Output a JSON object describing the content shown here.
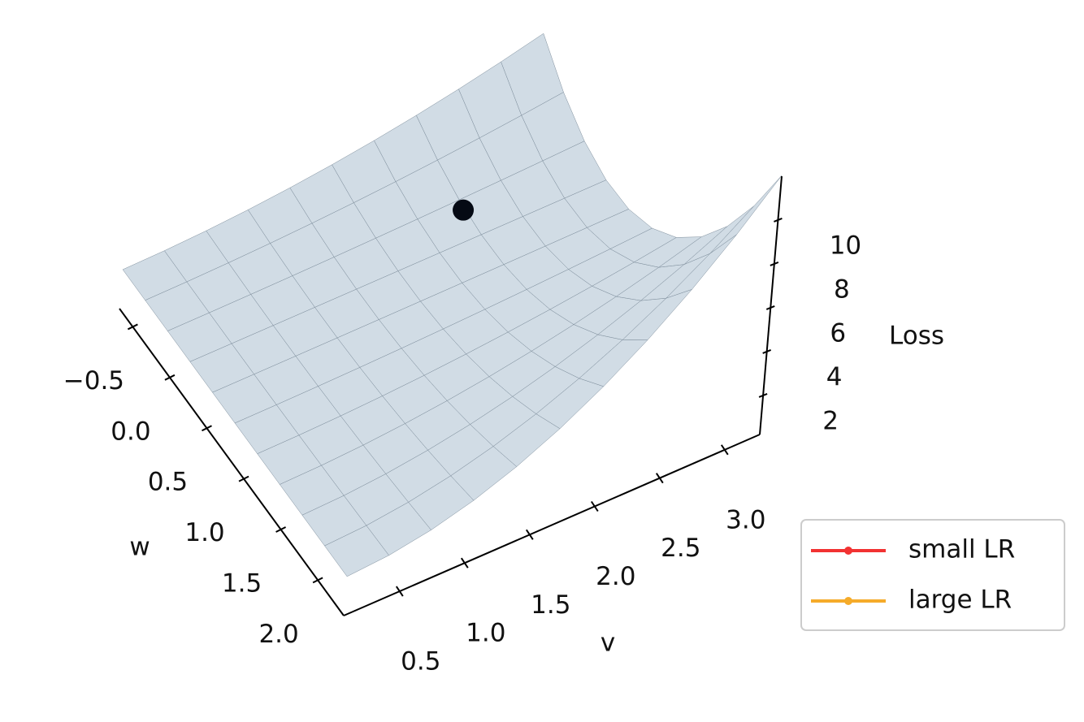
{
  "chart_data": {
    "type": "surface3d",
    "xlabel": "v",
    "ylabel": "w",
    "zlabel": "Loss",
    "xlim": [
      0.07,
      3.27
    ],
    "xticks": [
      0.5,
      {
        "value": 1,
        "label": "1.0"
      },
      1.5,
      {
        "value": 2,
        "label": "2.0"
      },
      2.5,
      {
        "value": 3,
        "label": "3.0"
      }
    ],
    "ylim": [
      -0.68,
      2.35
    ],
    "yticks": [
      {
        "value": -0.5,
        "label": "−0.5"
      },
      {
        "value": 0,
        "label": "0.0"
      },
      0.5,
      {
        "value": 1,
        "label": "1.0"
      },
      1.5,
      {
        "value": 2,
        "label": "2.0"
      }
    ],
    "zlim": [
      0.22,
      12
    ],
    "zticks": [
      2,
      4,
      6,
      8,
      10
    ],
    "point": {
      "v": 2.3,
      "w": 0.0,
      "z": 2.1,
      "color": "#050a14"
    },
    "surface_color": "#cdd9e3",
    "series": [
      {
        "name": "small LR",
        "color": "#f23232"
      },
      {
        "name": "large LR",
        "color": "#f5ab2a"
      }
    ],
    "legend": "lower right"
  }
}
